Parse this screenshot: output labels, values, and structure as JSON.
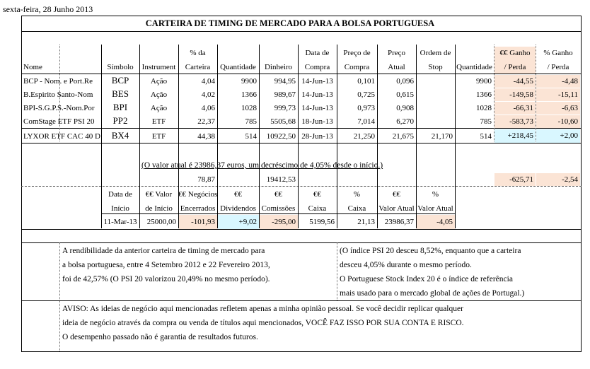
{
  "date": "sexta-feira, 28 Junho 2013",
  "title": "CARTEIRA DE TIMING DE MERCADO PARA A BOLSA PORTUGUESA",
  "headers": {
    "nome": "Nome",
    "simbolo": "Símbolo",
    "instrument": "Instrument",
    "pct_line1": "% da",
    "pct_line2": "Carteira",
    "quantidade": "Quantidade",
    "dinheiro": "Dinheiro",
    "data_line1": "Data de",
    "data_line2": "Compra",
    "preco_compra_line1": "Preço de",
    "preco_compra_line2": "Compra",
    "preco_atual_line1": "Preço",
    "preco_atual_line2": "Atual",
    "ordem_line1": "Ordem de",
    "ordem_line2": "Stop",
    "quantidade2": "Quantidade",
    "ganho_eur_line1": "€€ Ganho",
    "ganho_eur_line2": "/ Perda",
    "ganho_pct_line1": "% Ganho",
    "ganho_pct_line2": "/ Perda"
  },
  "rows": [
    {
      "nome": "BCP - Nom. e Port.Re",
      "simbolo": "BCP",
      "instrument": "Ação",
      "pct": "4,04",
      "quantidade": "9900",
      "dinheiro": "994,95",
      "data": "14-Jun-13",
      "preco_compra": "0,101",
      "preco_atual": "0,096",
      "ordem": "",
      "quantidade2": "9900",
      "ganho_eur": "-44,55",
      "ganho_pct": "-4,48"
    },
    {
      "nome": "B.Espirito Santo-Nom",
      "simbolo": "BES",
      "instrument": "Ação",
      "pct": "4,02",
      "quantidade": "1366",
      "dinheiro": "989,67",
      "data": "14-Jun-13",
      "preco_compra": "0,725",
      "preco_atual": "0,615",
      "ordem": "",
      "quantidade2": "1366",
      "ganho_eur": "-149,58",
      "ganho_pct": "-15,11"
    },
    {
      "nome": "BPI-S.G.P.S.-Nom.Por",
      "simbolo": "BPI",
      "instrument": "Ação",
      "pct": "4,06",
      "quantidade": "1028",
      "dinheiro": "999,73",
      "data": "14-Jun-13",
      "preco_compra": "0,973",
      "preco_atual": "0,908",
      "ordem": "",
      "quantidade2": "1028",
      "ganho_eur": "-66,31",
      "ganho_pct": "-6,63"
    },
    {
      "nome": "ComStage ETF PSI 20",
      "simbolo": "PP2",
      "instrument": "ETF",
      "pct": "22,37",
      "quantidade": "785",
      "dinheiro": "5505,68",
      "data": "18-Jun-13",
      "preco_compra": "7,014",
      "preco_atual": "6,270",
      "ordem": "",
      "quantidade2": "785",
      "ganho_eur": "-583,73",
      "ganho_pct": "-10,60"
    },
    {
      "nome": "LYXOR ETF CAC 40 D",
      "simbolo": "BX4",
      "instrument": "ETF",
      "pct": "44,38",
      "quantidade": "514",
      "dinheiro": "10922,50",
      "data": "28-Jun-13",
      "preco_compra": "21,250",
      "preco_atual": "21,675",
      "ordem": "21,170",
      "quantidade2": "514",
      "ganho_eur": "+218,45",
      "ganho_pct": "+2,00"
    }
  ],
  "summary_note": "(O valor atual é 23986,37 euros, um decréscimo de 4,05% desde o início.)",
  "totals": {
    "pct": "78,87",
    "dinheiro": "19412,53",
    "ganho_eur": "-625,71",
    "ganho_pct": "-2,54"
  },
  "summary_headers": {
    "data_inicio_1": "Data de",
    "data_inicio_2": "Início",
    "valor_inicio_1": "€€ Valor",
    "valor_inicio_2": "de Início",
    "negocios_1": "€€ Negócios",
    "negocios_2": "Encerrados",
    "dividendos_1": "€€",
    "dividendos_2": "Dividendos",
    "comissoes_1": "€€",
    "comissoes_2": "Comissões",
    "caixa_1": "€€",
    "caixa_2": "Caixa",
    "caixa_pct_1": "%",
    "caixa_pct_2": "Caixa",
    "valor_atual_1": "€€",
    "valor_atual_2": "Valor Atual",
    "valor_atual_pct_1": "%",
    "valor_atual_pct_2": "Valor Atual"
  },
  "summary_values": {
    "data_inicio": "11-Mar-13",
    "valor_inicio": "25000,00",
    "negocios": "-101,93",
    "dividendos": "+9,02",
    "comissoes": "-295,00",
    "caixa": "5199,56",
    "caixa_pct": "21,13",
    "valor_atual": "23986,37",
    "valor_atual_pct": "-4,05"
  },
  "left_paragraph": [
    "A rendibilidade da anterior carteira de timing de mercado para",
    "a bolsa portuguesa, entre 4 Setembro 2012 e 22 Fevereiro 2013,",
    "foi de 42,57% (O PSI 20 valorizou 20,49% no mesmo período)."
  ],
  "right_paragraph": [
    "(O índice PSI 20 desceu 8,52%, enquanto que a carteira",
    "desceu 4,05% durante o mesmo período.",
    "O Portuguese Stock Index 20 é o índice de referência",
    "mais usado para o mercado global de ações de Portugal.)"
  ],
  "disclaimer": [
    "AVISO: As ideias de negócio aqui mencionadas refletem apenas a minha opinião pessoal. Se você decidir replicar qualquer",
    "ideia de negócio através da compra ou venda de títulos aqui mencionados, VOCÊ FAZ ISSO POR SUA CONTA E RISCO.",
    "O desempenho passado não é garantia de resultados futuros."
  ],
  "colors": {
    "negative_fill": "#fbe4d5",
    "positive_fill": "#d9f7ff"
  }
}
